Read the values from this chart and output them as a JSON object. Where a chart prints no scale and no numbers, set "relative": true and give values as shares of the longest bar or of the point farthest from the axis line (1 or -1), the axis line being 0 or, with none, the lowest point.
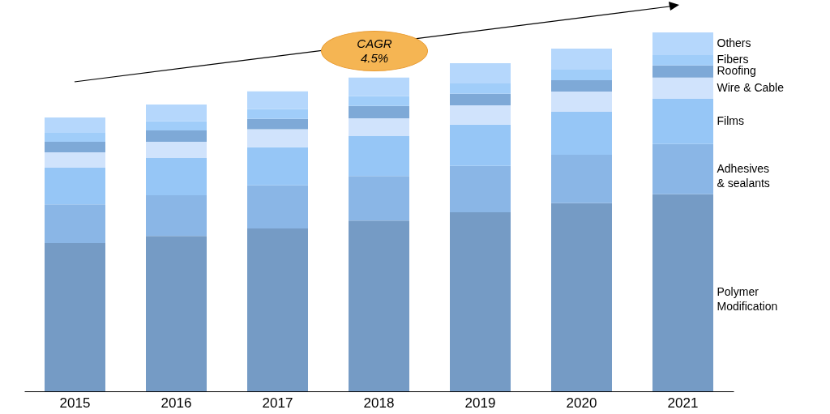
{
  "chart_data": {
    "type": "bar",
    "stacked": true,
    "relative": true,
    "categories": [
      "2015",
      "2016",
      "2017",
      "2018",
      "2019",
      "2020",
      "2021"
    ],
    "series": [
      {
        "name": "Polymer Modification",
        "color": "#759bc5",
        "values": [
          0.413,
          0.433,
          0.454,
          0.476,
          0.499,
          0.524,
          0.549
        ]
      },
      {
        "name": "Adhesives & sealants",
        "color": "#8ab6e6",
        "values": [
          0.108,
          0.113,
          0.12,
          0.124,
          0.129,
          0.135,
          0.14
        ]
      },
      {
        "name": "Films",
        "color": "#96c6f6",
        "values": [
          0.102,
          0.104,
          0.106,
          0.111,
          0.115,
          0.12,
          0.126
        ]
      },
      {
        "name": "Wire & Cable",
        "color": "#d0e3fc",
        "values": [
          0.043,
          0.045,
          0.05,
          0.05,
          0.054,
          0.056,
          0.059
        ]
      },
      {
        "name": "Roofing",
        "color": "#7ea9d7",
        "values": [
          0.029,
          0.032,
          0.029,
          0.034,
          0.032,
          0.032,
          0.034
        ]
      },
      {
        "name": "Fibers",
        "color": "#a0cdf9",
        "values": [
          0.025,
          0.025,
          0.027,
          0.027,
          0.029,
          0.029,
          0.029
        ]
      },
      {
        "name": "Others",
        "color": "#b5d7fc",
        "values": [
          0.043,
          0.047,
          0.05,
          0.052,
          0.056,
          0.059,
          0.063
        ]
      }
    ],
    "annotations": [
      "CAGR 4.5%"
    ]
  }
}
